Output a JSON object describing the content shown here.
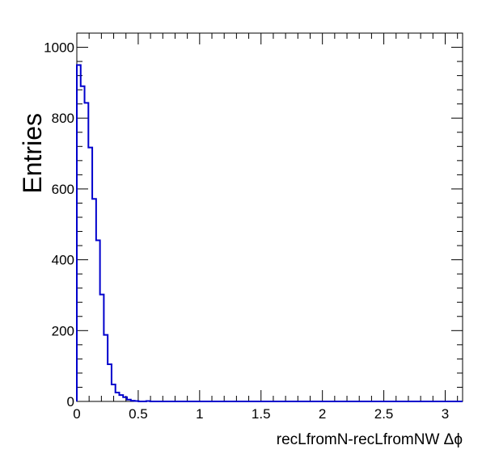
{
  "chart_data": {
    "type": "histogram",
    "title": "",
    "xlabel": "recLfromN-recLfromNW Δϕ",
    "ylabel": "Entries",
    "xlim": [
      0,
      3.1416
    ],
    "ylim": [
      0,
      1040
    ],
    "bin_width": 0.031416,
    "x_ticks": [
      0,
      0.5,
      1,
      1.5,
      2,
      2.5,
      3
    ],
    "x_tick_labels": [
      "0",
      "0.5",
      "1",
      "1.5",
      "2",
      "2.5",
      "3"
    ],
    "y_ticks": [
      0,
      200,
      400,
      600,
      800,
      1000
    ],
    "y_tick_labels": [
      "0",
      "200",
      "400",
      "600",
      "800",
      "1000"
    ],
    "line_color": "#0000cc",
    "grid": false,
    "values": [
      950,
      890,
      843,
      717,
      572,
      455,
      302,
      188,
      105,
      48,
      25,
      18,
      12,
      5,
      2,
      1,
      0,
      0,
      1,
      0,
      0,
      0,
      0,
      0,
      0,
      0,
      0,
      0,
      0,
      0,
      0,
      0,
      0,
      0,
      0,
      0,
      0,
      0,
      0,
      0,
      0,
      0,
      0,
      0,
      0,
      0,
      0,
      0,
      0,
      0,
      0,
      0,
      0,
      0,
      0,
      0,
      0,
      0,
      0,
      0,
      0,
      0,
      0,
      0,
      0,
      0,
      0,
      0,
      0,
      0,
      0,
      0,
      0,
      0,
      0,
      0,
      0,
      0,
      0,
      0,
      0,
      0,
      0,
      0,
      0,
      0,
      0,
      0,
      0,
      0,
      0,
      0,
      0,
      0,
      0,
      0,
      0,
      0,
      0,
      0
    ]
  }
}
